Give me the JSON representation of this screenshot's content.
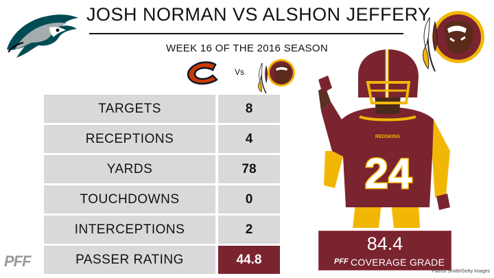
{
  "title": "JOSH NORMAN VS ALSHON JEFFERY",
  "subtitle": "WEEK 16 OF THE 2016 SEASON",
  "matchup": {
    "vs_label": "Vs"
  },
  "stats": [
    {
      "label": "TARGETS",
      "value": "8"
    },
    {
      "label": "RECEPTIONS",
      "value": "4"
    },
    {
      "label": "YARDS",
      "value": "78"
    },
    {
      "label": "TOUCHDOWNS",
      "value": "0"
    },
    {
      "label": "INTERCEPTIONS",
      "value": "2"
    },
    {
      "label": "PASSER RATING",
      "value": "44.8"
    }
  ],
  "grade": {
    "value": "84.4",
    "label": "COVERAGE GRADE",
    "brand": "PFF"
  },
  "brand_logo": "PFF",
  "credit": "Patrick Smith/Getty Images",
  "player": {
    "jersey_number": "24",
    "helmet_wordmark": "REDSKINS"
  },
  "colors": {
    "accent": "#7a2430",
    "panel": "#d9d9d9",
    "gold": "#f2b705"
  },
  "icons": {
    "eagles": "eagles-logo",
    "redskins": "redskins-logo",
    "bears": "bears-logo"
  }
}
